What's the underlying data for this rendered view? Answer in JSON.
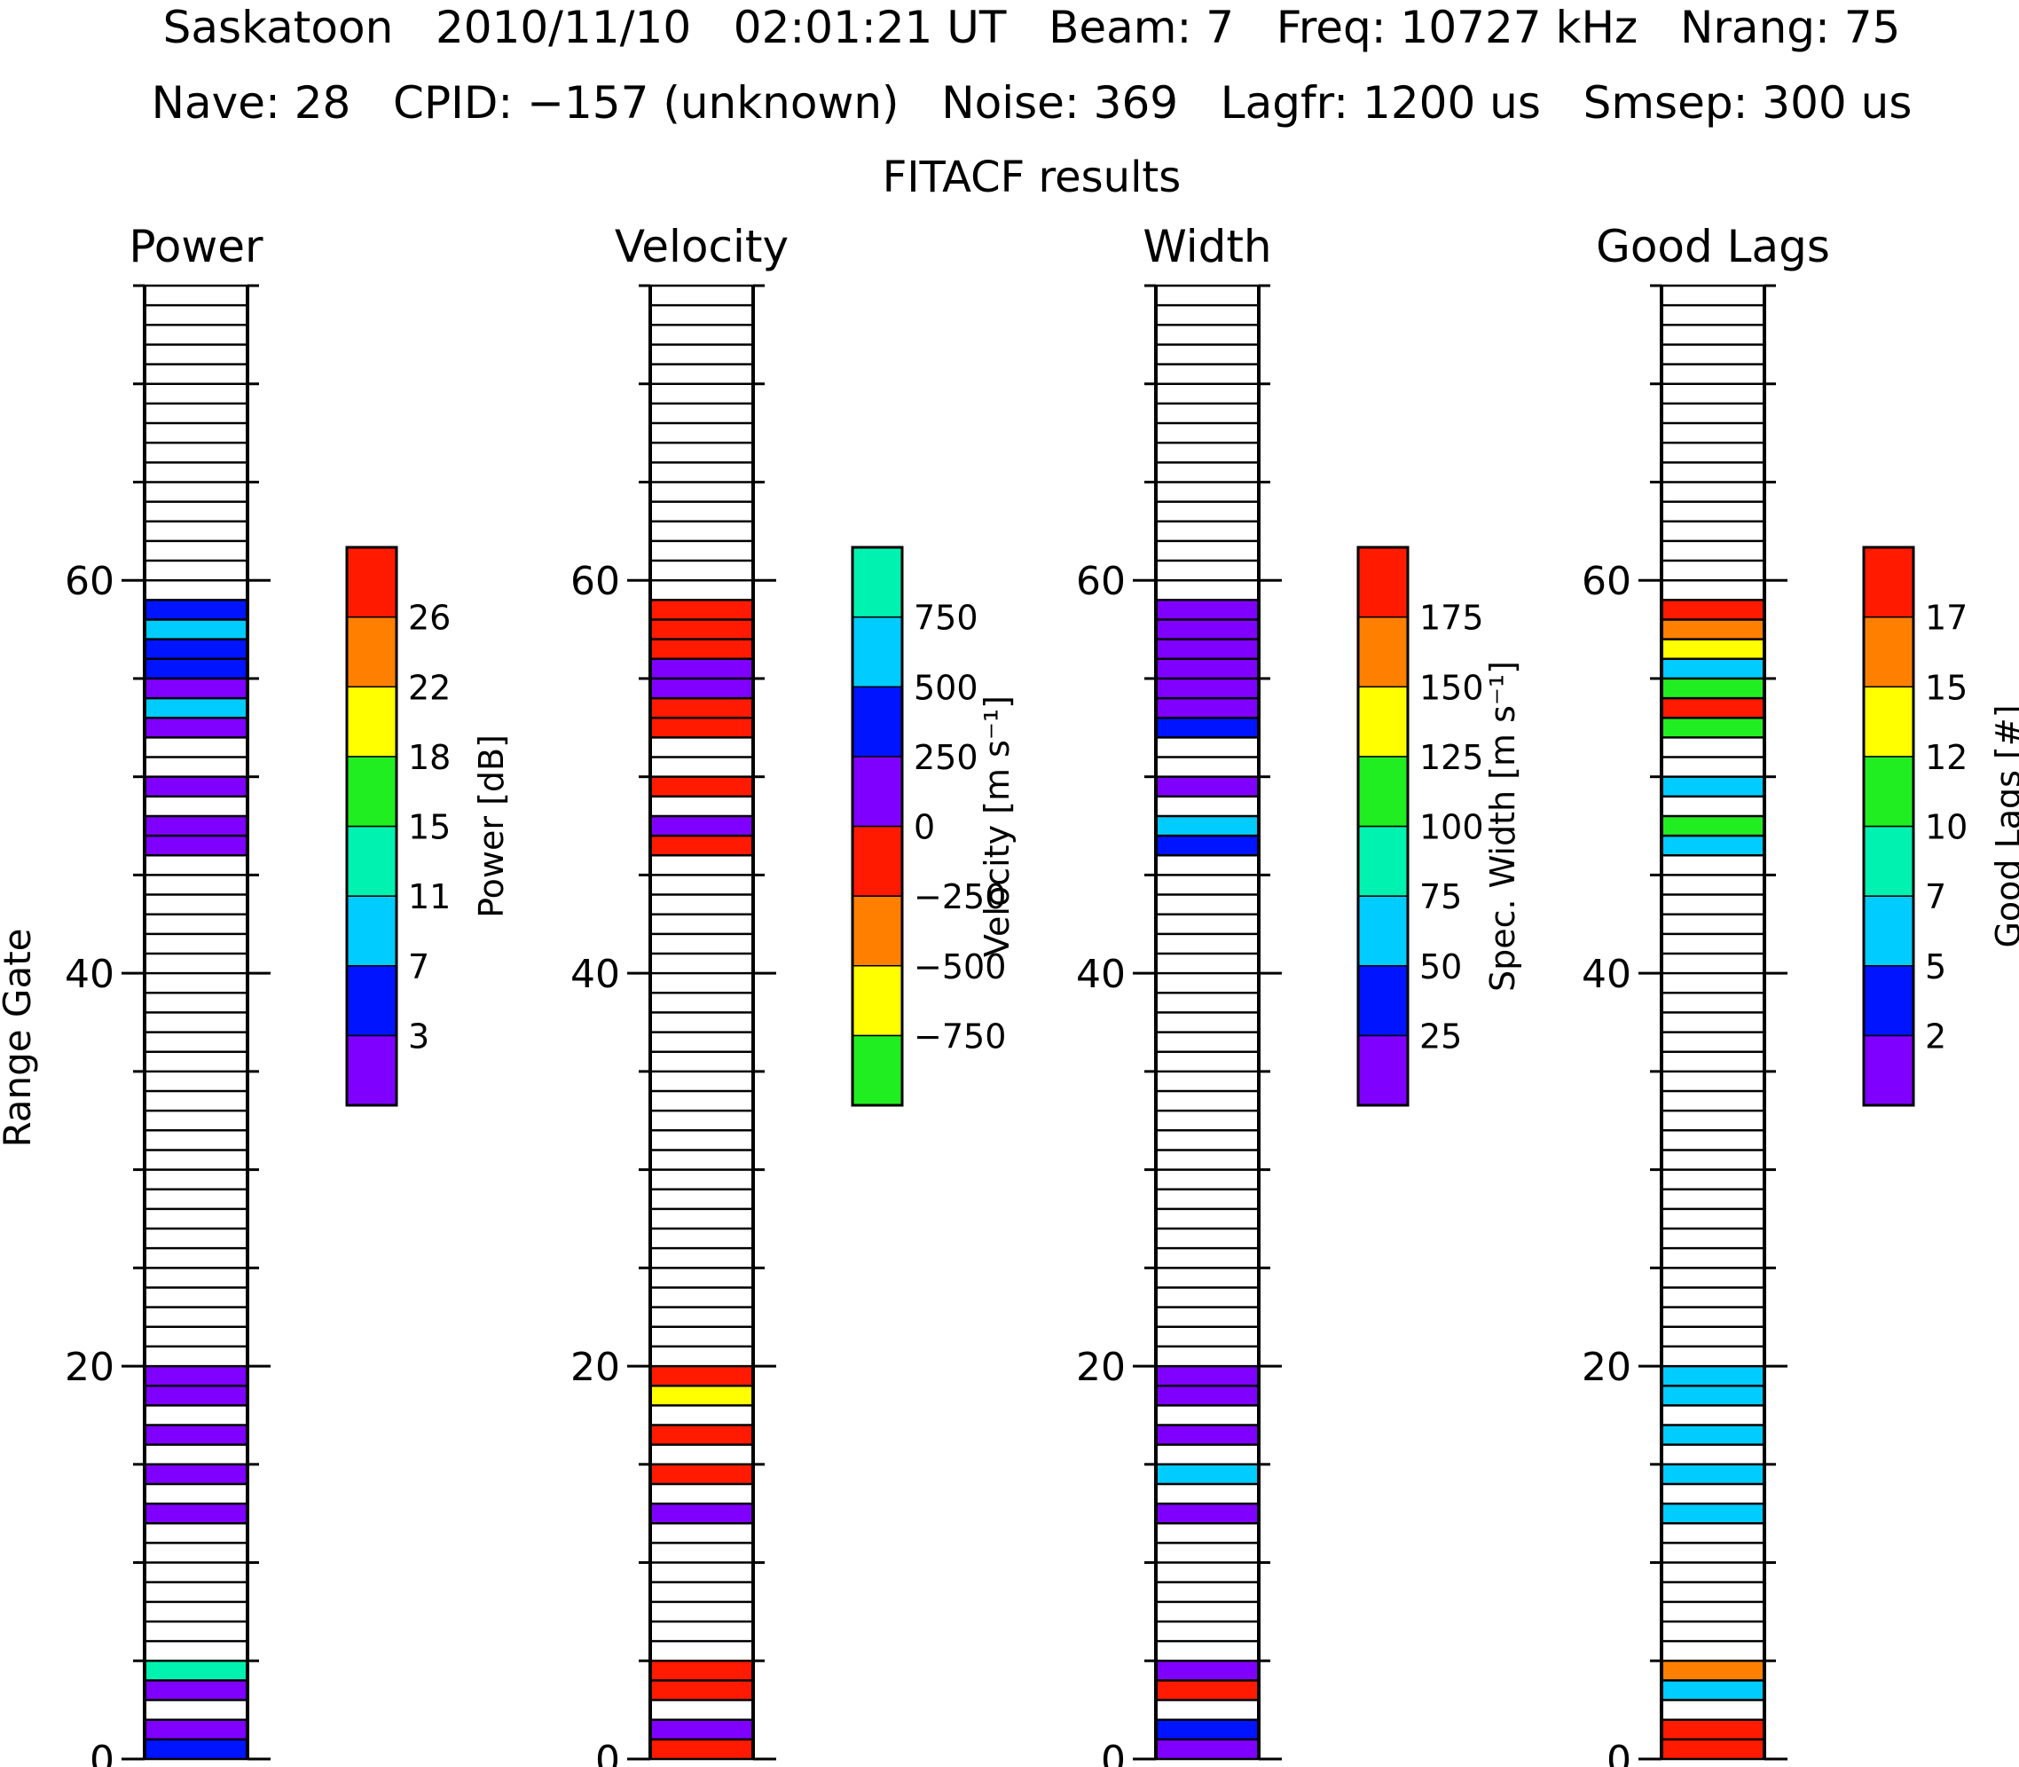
{
  "header": {
    "line1": "Saskatoon   2010/11/10   02:01:21 UT   Beam: 7   Freq: 10727 kHz   Nrang: 75",
    "line2": "Nave: 28   CPID: −157 (unknown)   Noise: 369   Lagfr: 1200 us   Smsep: 300 us",
    "line3": "FITACF results"
  },
  "axis": {
    "ylabel": "Range Gate",
    "yticks": [
      "0",
      "20",
      "40",
      "60"
    ]
  },
  "palette": {
    "c0": "#8000ff",
    "c1": "#0014ff",
    "c2": "#00ccff",
    "c3": "#00f2b0",
    "c4": "#21ee21",
    "c5": "#ffff00",
    "c6": "#ff8000",
    "c7": "#ff1a00"
  },
  "chart_data": [
    {
      "type": "heatmap",
      "title": "Power",
      "ylabel": "Range Gate",
      "ylim": [
        0,
        75
      ],
      "colorbar": {
        "label": "Power [dB]",
        "colors": [
          "c0",
          "c1",
          "c2",
          "c3",
          "c4",
          "c5",
          "c6",
          "c7"
        ],
        "ticks": [
          "3",
          "7",
          "11",
          "15",
          "18",
          "22",
          "26"
        ]
      },
      "gates": [
        {
          "gate": 0,
          "c": "c1"
        },
        {
          "gate": 1,
          "c": "c0"
        },
        {
          "gate": 3,
          "c": "c0"
        },
        {
          "gate": 4,
          "c": "c3"
        },
        {
          "gate": 12,
          "c": "c0"
        },
        {
          "gate": 14,
          "c": "c0"
        },
        {
          "gate": 16,
          "c": "c0"
        },
        {
          "gate": 18,
          "c": "c0"
        },
        {
          "gate": 19,
          "c": "c0"
        },
        {
          "gate": 46,
          "c": "c0"
        },
        {
          "gate": 47,
          "c": "c0"
        },
        {
          "gate": 49,
          "c": "c0"
        },
        {
          "gate": 52,
          "c": "c0"
        },
        {
          "gate": 53,
          "c": "c2"
        },
        {
          "gate": 54,
          "c": "c0"
        },
        {
          "gate": 55,
          "c": "c1"
        },
        {
          "gate": 56,
          "c": "c1"
        },
        {
          "gate": 57,
          "c": "c2"
        },
        {
          "gate": 58,
          "c": "c1"
        }
      ]
    },
    {
      "type": "heatmap",
      "title": "Velocity",
      "ylim": [
        0,
        75
      ],
      "colorbar": {
        "label": "Velocity [m s⁻¹]",
        "colors": [
          "c4",
          "c5",
          "c6",
          "c7",
          "c0",
          "c1",
          "c2",
          "c3"
        ],
        "ticks": [
          "−750",
          "−500",
          "−250",
          "0",
          "250",
          "500",
          "750"
        ]
      },
      "gates": [
        {
          "gate": 0,
          "c": "c7"
        },
        {
          "gate": 1,
          "c": "c0"
        },
        {
          "gate": 3,
          "c": "c7"
        },
        {
          "gate": 4,
          "c": "c7"
        },
        {
          "gate": 12,
          "c": "c0"
        },
        {
          "gate": 14,
          "c": "c7"
        },
        {
          "gate": 16,
          "c": "c7"
        },
        {
          "gate": 18,
          "c": "c5"
        },
        {
          "gate": 19,
          "c": "c7"
        },
        {
          "gate": 46,
          "c": "c7"
        },
        {
          "gate": 47,
          "c": "c0"
        },
        {
          "gate": 49,
          "c": "c7"
        },
        {
          "gate": 52,
          "c": "c7"
        },
        {
          "gate": 53,
          "c": "c7"
        },
        {
          "gate": 54,
          "c": "c0"
        },
        {
          "gate": 55,
          "c": "c0"
        },
        {
          "gate": 56,
          "c": "c7"
        },
        {
          "gate": 57,
          "c": "c7"
        },
        {
          "gate": 58,
          "c": "c7"
        }
      ]
    },
    {
      "type": "heatmap",
      "title": "Width",
      "ylim": [
        0,
        75
      ],
      "colorbar": {
        "label": "Spec. Width [m s⁻¹]",
        "colors": [
          "c0",
          "c1",
          "c2",
          "c3",
          "c4",
          "c5",
          "c6",
          "c7"
        ],
        "ticks": [
          "25",
          "50",
          "75",
          "100",
          "125",
          "150",
          "175"
        ]
      },
      "gates": [
        {
          "gate": 0,
          "c": "c0"
        },
        {
          "gate": 1,
          "c": "c1"
        },
        {
          "gate": 3,
          "c": "c7"
        },
        {
          "gate": 4,
          "c": "c0"
        },
        {
          "gate": 12,
          "c": "c0"
        },
        {
          "gate": 14,
          "c": "c2"
        },
        {
          "gate": 16,
          "c": "c0"
        },
        {
          "gate": 18,
          "c": "c0"
        },
        {
          "gate": 19,
          "c": "c0"
        },
        {
          "gate": 46,
          "c": "c1"
        },
        {
          "gate": 47,
          "c": "c2"
        },
        {
          "gate": 49,
          "c": "c0"
        },
        {
          "gate": 52,
          "c": "c1"
        },
        {
          "gate": 53,
          "c": "c0"
        },
        {
          "gate": 54,
          "c": "c0"
        },
        {
          "gate": 55,
          "c": "c0"
        },
        {
          "gate": 56,
          "c": "c0"
        },
        {
          "gate": 57,
          "c": "c0"
        },
        {
          "gate": 58,
          "c": "c0"
        }
      ]
    },
    {
      "type": "heatmap",
      "title": "Good Lags",
      "ylim": [
        0,
        75
      ],
      "colorbar": {
        "label": "Good Lags [#]",
        "colors": [
          "c0",
          "c1",
          "c2",
          "c3",
          "c4",
          "c5",
          "c6",
          "c7"
        ],
        "ticks": [
          "2",
          "5",
          "7",
          "10",
          "12",
          "15",
          "17"
        ]
      },
      "gates": [
        {
          "gate": 0,
          "c": "c7"
        },
        {
          "gate": 1,
          "c": "c7"
        },
        {
          "gate": 3,
          "c": "c2"
        },
        {
          "gate": 4,
          "c": "c6"
        },
        {
          "gate": 12,
          "c": "c2"
        },
        {
          "gate": 14,
          "c": "c2"
        },
        {
          "gate": 16,
          "c": "c2"
        },
        {
          "gate": 18,
          "c": "c2"
        },
        {
          "gate": 19,
          "c": "c2"
        },
        {
          "gate": 46,
          "c": "c2"
        },
        {
          "gate": 47,
          "c": "c4"
        },
        {
          "gate": 49,
          "c": "c2"
        },
        {
          "gate": 52,
          "c": "c4"
        },
        {
          "gate": 53,
          "c": "c7"
        },
        {
          "gate": 54,
          "c": "c4"
        },
        {
          "gate": 55,
          "c": "c2"
        },
        {
          "gate": 56,
          "c": "c5"
        },
        {
          "gate": 57,
          "c": "c6"
        },
        {
          "gate": 58,
          "c": "c7"
        }
      ]
    }
  ]
}
